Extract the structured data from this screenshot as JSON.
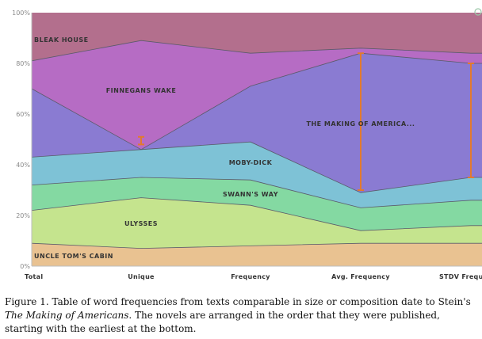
{
  "chart_data": {
    "type": "area",
    "stacked": true,
    "normalized": true,
    "categories": [
      "Total",
      "Unique",
      "Frequency",
      "Avg. Frequency",
      "STDV Freque"
    ],
    "y_ticks": [
      "0%",
      "20%",
      "40%",
      "60%",
      "80%",
      "100%"
    ],
    "ylim": [
      0,
      100
    ],
    "grid": false,
    "series": [
      {
        "name": "UNCLE TOM'S CABIN",
        "color": "#e9c291",
        "values": [
          9,
          7,
          8,
          9,
          9
        ]
      },
      {
        "name": "ULYSSES",
        "color": "#c5e48e",
        "values": [
          13,
          20,
          16,
          5,
          7
        ]
      },
      {
        "name": "SWANN'S WAY",
        "color": "#84d9a2",
        "values": [
          10,
          8,
          10,
          9,
          10
        ]
      },
      {
        "name": "MOBY-DICK",
        "color": "#7ec2d6",
        "values": [
          11,
          11,
          15,
          6,
          9
        ]
      },
      {
        "name": "THE MAKING OF AMERICA...",
        "color": "#8a7bd2",
        "values": [
          27,
          0,
          22,
          55,
          45
        ]
      },
      {
        "name": "FINNEGANS WAKE",
        "color": "#b66cc4",
        "values": [
          11,
          43,
          13,
          2,
          4
        ]
      },
      {
        "name": "BLEAK HOUSE",
        "color": "#b36f8d",
        "values": [
          19,
          11,
          16,
          14,
          16
        ]
      }
    ],
    "error_bars": [
      {
        "category": "Unique",
        "low": 48,
        "high": 51
      },
      {
        "category": "Avg. Frequency",
        "low": 30,
        "high": 84
      },
      {
        "category": "STDV Freque",
        "low": 35,
        "high": 80
      }
    ],
    "error_bar_color": "#e27a2e"
  },
  "caption": {
    "part1": "Figure 1. Table of word frequencies from texts comparable in size or composition date to Stein's",
    "title_italic": "The Making of Americans",
    "part2": ". The novels are arranged in the order that they were published, starting with the earliest at the bottom."
  }
}
